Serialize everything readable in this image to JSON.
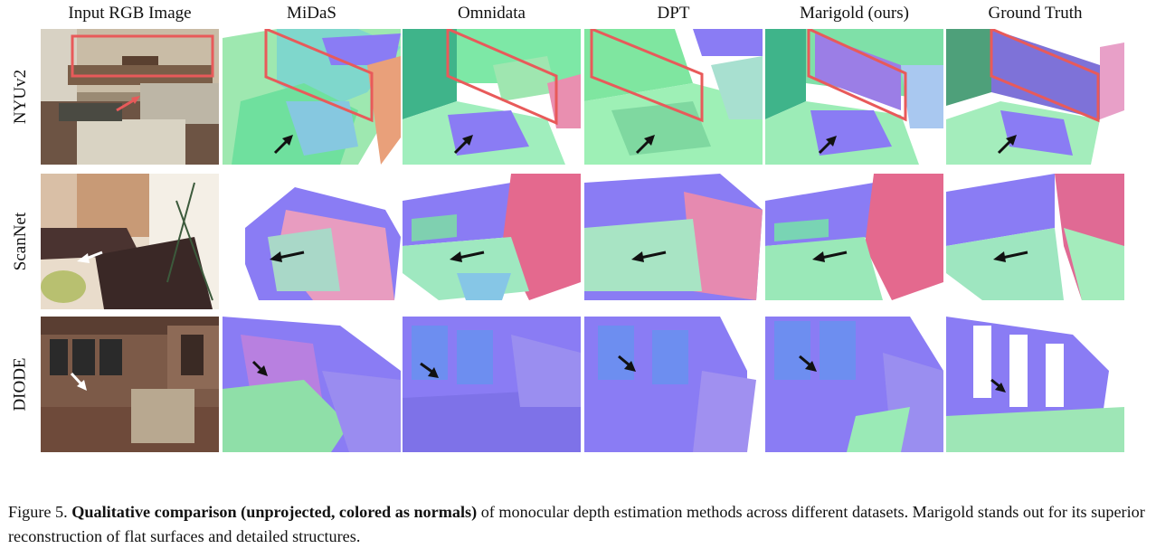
{
  "columns": [
    "Input RGB Image",
    "MiDaS",
    "Omnidata",
    "DPT",
    "Marigold (ours)",
    "Ground Truth"
  ],
  "rows": [
    "NYUv2",
    "ScanNet",
    "DIODE"
  ],
  "caption": {
    "label": "Figure 5.",
    "bold": "Qualitative comparison (unprojected, colored as normals)",
    "rest": "of monocular depth estimation methods across different datasets. Marigold stands out for its superior reconstruction of flat surfaces and detailed structures."
  },
  "colors": {
    "normal_blue": "#8a7cf4",
    "normal_green": "#7fe69a",
    "normal_pink": "#e65c8a",
    "highlight_box": "#e85a5a"
  }
}
